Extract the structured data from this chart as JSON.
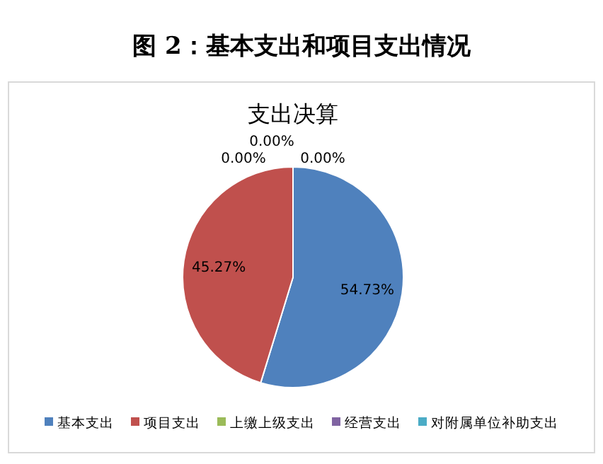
{
  "chart_data": {
    "type": "pie",
    "title": "图 2：基本支出和项目支出情况",
    "subtitle": "支出决算",
    "categories": [
      "基本支出",
      "项目支出",
      "上缴上级支出",
      "经营支出",
      "对附属单位补助支出"
    ],
    "values": [
      54.73,
      45.27,
      0,
      0,
      0
    ],
    "colors": [
      "#4f81bd",
      "#c0504d",
      "#9bbb59",
      "#8064a2",
      "#4bacc6"
    ],
    "value_labels": [
      "54.73%",
      "45.27%",
      "0.00%",
      "0.00%",
      "0.00%"
    ],
    "legend": "bottom"
  }
}
